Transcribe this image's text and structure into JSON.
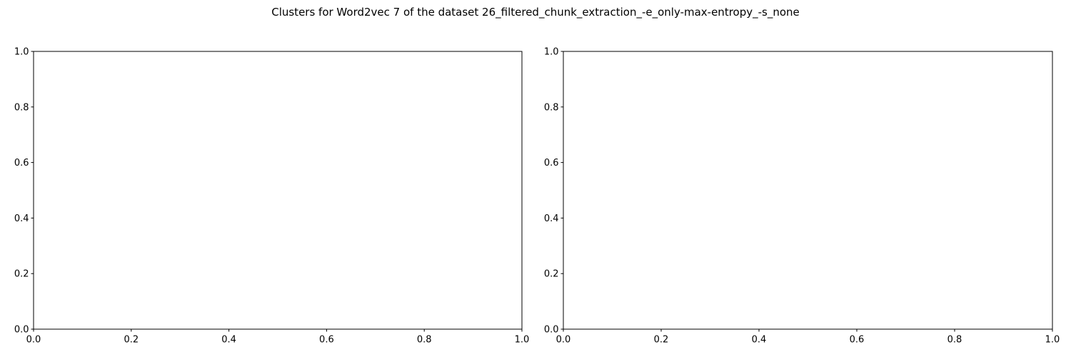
{
  "figure": {
    "title": "Clusters for Word2vec 7 of the dataset 26_filtered_chunk_extraction_-e_only-max-entropy_-s_none"
  },
  "chart_data": [
    {
      "type": "scatter",
      "title": "",
      "xlabel": "",
      "ylabel": "",
      "xlim": [
        0.0,
        1.0
      ],
      "ylim": [
        0.0,
        1.0
      ],
      "xticks": [
        "0.0",
        "0.2",
        "0.4",
        "0.6",
        "0.8",
        "1.0"
      ],
      "yticks": [
        "0.0",
        "0.2",
        "0.4",
        "0.6",
        "0.8",
        "1.0"
      ],
      "grid": false,
      "series": []
    },
    {
      "type": "scatter",
      "title": "",
      "xlabel": "",
      "ylabel": "",
      "xlim": [
        0.0,
        1.0
      ],
      "ylim": [
        0.0,
        1.0
      ],
      "xticks": [
        "0.0",
        "0.2",
        "0.4",
        "0.6",
        "0.8",
        "1.0"
      ],
      "yticks": [
        "0.0",
        "0.2",
        "0.4",
        "0.6",
        "0.8",
        "1.0"
      ],
      "grid": false,
      "series": []
    }
  ]
}
